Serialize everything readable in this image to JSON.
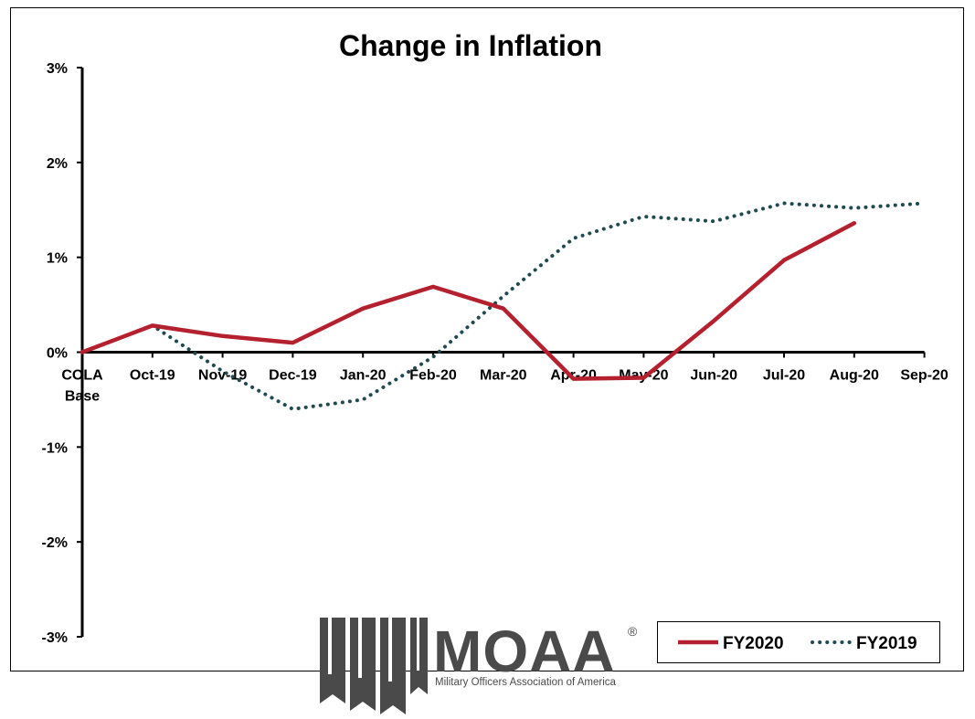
{
  "chart_data": {
    "type": "line",
    "title": "Change in Inflation",
    "categories": [
      "COLA Base",
      "Oct-19",
      "Nov-19",
      "Dec-19",
      "Jan-20",
      "Feb-20",
      "Mar-20",
      "Apr-20",
      "May-20",
      "Jun-20",
      "Jul-20",
      "Aug-20",
      "Sep-20"
    ],
    "category_lines": [
      [
        "COLA",
        "Base"
      ],
      [
        "Oct-19"
      ],
      [
        "Nov-19"
      ],
      [
        "Dec-19"
      ],
      [
        "Jan-20"
      ],
      [
        "Feb-20"
      ],
      [
        "Mar-20"
      ],
      [
        "Apr-20"
      ],
      [
        "May-20"
      ],
      [
        "Jun-20"
      ],
      [
        "Jul-20"
      ],
      [
        "Aug-20"
      ],
      [
        "Sep-20"
      ]
    ],
    "y_ticks": [
      "3%",
      "2%",
      "1%",
      "0%",
      "-1%",
      "-2%",
      "-3%"
    ],
    "ylim": [
      -3,
      3
    ],
    "unit": "%",
    "grid": false,
    "legend_position": "bottom-right",
    "series": [
      {
        "name": "FY2020",
        "style": "solid",
        "color": "#b5202e",
        "values": [
          0.0,
          0.28,
          0.17,
          0.1,
          0.46,
          0.69,
          0.46,
          -0.28,
          -0.27,
          0.33,
          0.97,
          1.36,
          null
        ]
      },
      {
        "name": "FY2019",
        "style": "dotted",
        "color": "#1f4a4f",
        "values": [
          0.0,
          0.28,
          -0.2,
          -0.6,
          -0.5,
          -0.05,
          0.59,
          1.2,
          1.43,
          1.38,
          1.57,
          1.52,
          1.57
        ]
      }
    ]
  },
  "logo": {
    "name": "MOAA",
    "mark": "®",
    "tagline": "Military Officers Association of America",
    "color": "#4a4a4a"
  }
}
